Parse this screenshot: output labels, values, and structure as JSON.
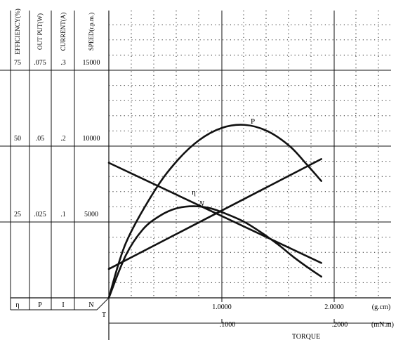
{
  "chart_data": {
    "type": "line",
    "title": "",
    "xlabel": "TORQUE",
    "axis_titles": {
      "efficiency": "EFFICIENCY(%)",
      "output": "OUT PUT(W)",
      "current": "CURRENT(A)",
      "speed": "SPEED(r.p.m.)"
    },
    "y_ticks": [
      {
        "efficiency": "75",
        "output": ".075",
        "current": ".3",
        "speed": "15000"
      },
      {
        "efficiency": "50",
        "output": ".05",
        "current": ".2",
        "speed": "10000"
      },
      {
        "efficiency": "25",
        "output": ".025",
        "current": ".1",
        "speed": "5000"
      }
    ],
    "bottom_symbols": [
      "η",
      "P",
      "I",
      "N"
    ],
    "origin_label": "T",
    "x_ticks_gcm": [
      "1.0000",
      "2.0000"
    ],
    "x_unit_gcm": "(g.cm)",
    "x_ticks_mnm": [
      ".1000",
      ".2000"
    ],
    "x_unit_mnm": "(mN.m)",
    "ylim_speed": [
      0,
      15000
    ],
    "xlim_gcm": [
      0,
      2.4
    ],
    "series": [
      {
        "name": "N",
        "label": "N",
        "axis": "speed",
        "x": [
          0,
          1.88
        ],
        "y": [
          8900,
          2300
        ]
      },
      {
        "name": "I",
        "label": "I",
        "axis": "current",
        "x": [
          0,
          1.88
        ],
        "y": [
          0.038,
          0.183
        ]
      },
      {
        "name": "P",
        "label": "P",
        "axis": "output",
        "x": [
          0,
          0.15,
          0.4,
          0.6,
          0.8,
          1.0,
          1.2,
          1.4,
          1.6,
          1.75,
          1.88
        ],
        "y": [
          0,
          0.018,
          0.035,
          0.045,
          0.052,
          0.056,
          0.057,
          0.055,
          0.05,
          0.044,
          0.0385
        ]
      },
      {
        "name": "η",
        "label": "η",
        "axis": "efficiency",
        "x": [
          0,
          0.15,
          0.3,
          0.45,
          0.6,
          0.75,
          0.9,
          1.05,
          1.2,
          1.35,
          1.5,
          1.65,
          1.78,
          1.88
        ],
        "y": [
          0,
          14,
          22.5,
          27,
          29.5,
          30.2,
          29.5,
          27.5,
          25,
          21.5,
          17.5,
          13,
          9.5,
          7
        ]
      }
    ]
  }
}
